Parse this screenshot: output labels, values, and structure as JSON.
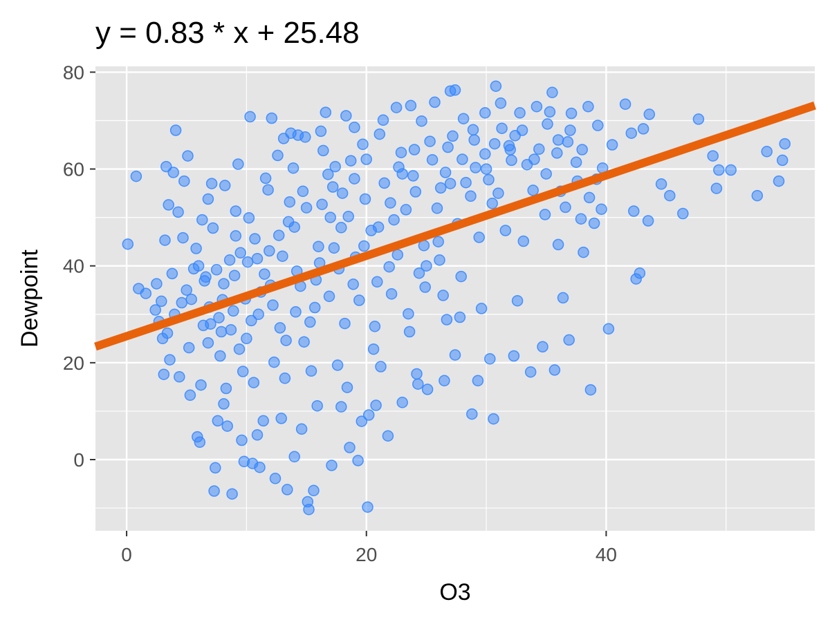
{
  "chart_data": {
    "type": "scatter",
    "title": "y = 0.83 * x + 25.48",
    "xlabel": "O3",
    "ylabel": "Dewpoint",
    "xlim": [
      -2.6,
      57.4
    ],
    "ylim": [
      -14.7,
      81.2
    ],
    "x_ticks": [
      0,
      20,
      40
    ],
    "x_tick_labels": [
      "0",
      "20",
      "40"
    ],
    "y_ticks": [
      0,
      20,
      40,
      60,
      80
    ],
    "y_tick_labels": [
      "0",
      "20",
      "40",
      "60",
      "80"
    ],
    "grid": true,
    "legend": "none",
    "colors": {
      "panel_background": "#e5e5e5",
      "grid": "#ffffff",
      "points": "#3385ff",
      "fit_line": "#e8620c"
    },
    "fit_line": {
      "slope": 0.83,
      "intercept": 25.48
    },
    "series": [
      {
        "points": [
          [
            0.1,
            44.5
          ],
          [
            0.8,
            58.5
          ],
          [
            1,
            35.3
          ],
          [
            1.6,
            34.3
          ],
          [
            2.4,
            30.9
          ],
          [
            2.5,
            36.3
          ],
          [
            2.9,
            32.7
          ],
          [
            3.1,
            17.6
          ],
          [
            3.2,
            45.3
          ],
          [
            3.3,
            60.5
          ],
          [
            3.4,
            26.1
          ],
          [
            3.5,
            52.6
          ],
          [
            3.6,
            20.6
          ],
          [
            3.9,
            59.3
          ],
          [
            4.1,
            68
          ],
          [
            4.3,
            51.1
          ],
          [
            4.7,
            45.8
          ],
          [
            4.8,
            57.5
          ],
          [
            5.1,
            62.7
          ],
          [
            5.3,
            13.3
          ],
          [
            5.6,
            39.4
          ],
          [
            5.9,
            4.7
          ],
          [
            6.1,
            3.6
          ],
          [
            6.3,
            49.5
          ],
          [
            6.6,
            37.7
          ],
          [
            6.8,
            53.8
          ],
          [
            7.1,
            57
          ],
          [
            7.3,
            -6.5
          ],
          [
            7.4,
            -1.7
          ],
          [
            7.6,
            8
          ],
          [
            7.9,
            26.4
          ],
          [
            8.1,
            11.5
          ],
          [
            8.2,
            56.6
          ],
          [
            8.4,
            6.9
          ],
          [
            8.8,
            -7.1
          ],
          [
            9.1,
            46.2
          ],
          [
            9.3,
            61
          ],
          [
            9.6,
            4
          ],
          [
            9.8,
            -0.4
          ],
          [
            10.1,
            40.8
          ],
          [
            10.3,
            70.8
          ],
          [
            10.5,
            -0.8
          ],
          [
            10.9,
            5.1
          ],
          [
            11.1,
            -1.6
          ],
          [
            11.4,
            8
          ],
          [
            11.6,
            58.1
          ],
          [
            12.1,
            70.5
          ],
          [
            12.4,
            -3.9
          ],
          [
            12.6,
            62.8
          ],
          [
            12.9,
            8.5
          ],
          [
            13.1,
            66.3
          ],
          [
            13.4,
            -6.2
          ],
          [
            13.7,
            67.4
          ],
          [
            14,
            0.6
          ],
          [
            14.3,
            67
          ],
          [
            14.6,
            6.3
          ],
          [
            14.9,
            66.6
          ],
          [
            15.1,
            -8.7
          ],
          [
            15.2,
            -10.3
          ],
          [
            15.6,
            -6.4
          ],
          [
            15.9,
            11.1
          ],
          [
            16.2,
            67.8
          ],
          [
            16.6,
            71.7
          ],
          [
            17.1,
            -1.2
          ],
          [
            17.4,
            60.5
          ],
          [
            17.9,
            10.9
          ],
          [
            18.3,
            71
          ],
          [
            18.6,
            2.5
          ],
          [
            19,
            68.6
          ],
          [
            19.3,
            -0.2
          ],
          [
            19.6,
            7.9
          ],
          [
            20.1,
            -9.8
          ],
          [
            20.2,
            9.2
          ],
          [
            20.8,
            11.2
          ],
          [
            21.4,
            70.1
          ],
          [
            21.8,
            4.9
          ],
          [
            22.5,
            72.7
          ],
          [
            23,
            11.8
          ],
          [
            23.7,
            73.1
          ],
          [
            24.3,
            15.6
          ],
          [
            25.1,
            14.5
          ],
          [
            25.7,
            73.8
          ],
          [
            26.5,
            16.3
          ],
          [
            27,
            76.1
          ],
          [
            27.4,
            76.3
          ],
          [
            28.1,
            70.4
          ],
          [
            28.8,
            9.4
          ],
          [
            29.3,
            16.3
          ],
          [
            29.9,
            71.6
          ],
          [
            30.6,
            8.4
          ],
          [
            30.8,
            77.1
          ],
          [
            31.2,
            73.6
          ],
          [
            32.3,
            21.4
          ],
          [
            32.8,
            71.6
          ],
          [
            33.7,
            18.1
          ],
          [
            34.2,
            72.9
          ],
          [
            34.7,
            23.3
          ],
          [
            35.3,
            71.8
          ],
          [
            35.5,
            75.8
          ],
          [
            35.7,
            18.5
          ],
          [
            36,
            44.4
          ],
          [
            36.4,
            33.4
          ],
          [
            36.9,
            24.7
          ],
          [
            37.1,
            71.5
          ],
          [
            37.6,
            57.5
          ],
          [
            38.1,
            42.8
          ],
          [
            38.5,
            72.9
          ],
          [
            38.7,
            14.4
          ],
          [
            39,
            48.8
          ],
          [
            39.3,
            69
          ],
          [
            39.6,
            51.7
          ],
          [
            40.2,
            27
          ],
          [
            40.5,
            65
          ],
          [
            41.6,
            73.4
          ],
          [
            42.1,
            67.4
          ],
          [
            42.3,
            51.3
          ],
          [
            42.5,
            37.3
          ],
          [
            42.8,
            38.5
          ],
          [
            43.1,
            68.3
          ],
          [
            43.5,
            49.3
          ],
          [
            43.6,
            71.3
          ],
          [
            44.6,
            56.9
          ],
          [
            45.3,
            54.5
          ],
          [
            46.4,
            50.8
          ],
          [
            47.7,
            70.3
          ],
          [
            48.9,
            62.7
          ],
          [
            49.2,
            56
          ],
          [
            49.4,
            59.8
          ],
          [
            50.4,
            59.8
          ],
          [
            52.6,
            54.5
          ],
          [
            53.4,
            63.6
          ],
          [
            54.4,
            57.5
          ],
          [
            54.7,
            61.8
          ],
          [
            54.9,
            65.2
          ],
          [
            3,
            25
          ],
          [
            4,
            30
          ],
          [
            5,
            35
          ],
          [
            6,
            40
          ],
          [
            7,
            28
          ],
          [
            8,
            33
          ],
          [
            9,
            38
          ],
          [
            10,
            25
          ],
          [
            11,
            30
          ],
          [
            12,
            36
          ],
          [
            13,
            42
          ],
          [
            14,
            48
          ],
          [
            15,
            52
          ],
          [
            16,
            44
          ],
          [
            17,
            50
          ],
          [
            18,
            55
          ],
          [
            19,
            58
          ],
          [
            20,
            62
          ],
          [
            21,
            48
          ],
          [
            22,
            53
          ],
          [
            23,
            59
          ],
          [
            24,
            64
          ],
          [
            25,
            40
          ],
          [
            26,
            45
          ],
          [
            27,
            57
          ],
          [
            28,
            62
          ],
          [
            29,
            66
          ],
          [
            30,
            60
          ],
          [
            31,
            55
          ],
          [
            32,
            64
          ],
          [
            33,
            68
          ],
          [
            34,
            62
          ],
          [
            35,
            59
          ],
          [
            36,
            66
          ],
          [
            37,
            68
          ],
          [
            38,
            64
          ],
          [
            6.8,
            24.1
          ],
          [
            7.7,
            29.3
          ],
          [
            9.4,
            22.8
          ],
          [
            11.2,
            34.6
          ],
          [
            12.8,
            27.2
          ],
          [
            14.2,
            38.9
          ],
          [
            15.7,
            31.4
          ],
          [
            17.3,
            43.7
          ],
          [
            18.9,
            36.2
          ],
          [
            20.4,
            47.3
          ],
          [
            21.9,
            39.8
          ],
          [
            23.3,
            51.6
          ],
          [
            24.8,
            44.2
          ],
          [
            26.2,
            56.1
          ],
          [
            27.6,
            48.7
          ],
          [
            29.1,
            60.3
          ],
          [
            30.5,
            52.9
          ],
          [
            31.9,
            64.8
          ],
          [
            5.4,
            33.1
          ],
          [
            8.6,
            41.2
          ],
          [
            10.7,
            45.6
          ],
          [
            13.6,
            53.2
          ],
          [
            16.8,
            58.9
          ],
          [
            19.7,
            65.1
          ],
          [
            22.7,
            60.4
          ],
          [
            25.3,
            65.7
          ],
          [
            28.3,
            57.2
          ],
          [
            31.3,
            68.4
          ],
          [
            33.4,
            60.9
          ],
          [
            35.9,
            63.3
          ],
          [
            9.7,
            18.2
          ],
          [
            12.3,
            20.1
          ],
          [
            14.8,
            24.3
          ],
          [
            17.6,
            19.5
          ],
          [
            20.6,
            22.8
          ],
          [
            23.6,
            26.4
          ],
          [
            26.7,
            28.9
          ],
          [
            29.6,
            31.2
          ],
          [
            32.6,
            32.8
          ],
          [
            4.4,
            17.1
          ],
          [
            6.2,
            15.4
          ],
          [
            8.3,
            14.7
          ],
          [
            10.6,
            15.9
          ],
          [
            13.2,
            16.8
          ],
          [
            15.4,
            18.3
          ],
          [
            18.4,
            14.9
          ],
          [
            21.2,
            19.2
          ],
          [
            24.2,
            17.7
          ],
          [
            27.4,
            21.6
          ],
          [
            30.3,
            20.8
          ],
          [
            3.8,
            38.4
          ],
          [
            5.8,
            43.6
          ],
          [
            7.2,
            47.8
          ],
          [
            9.1,
            51.3
          ],
          [
            11.8,
            55.7
          ],
          [
            13.9,
            60.2
          ],
          [
            16.4,
            63.8
          ],
          [
            18.7,
            61.7
          ],
          [
            21.1,
            67.2
          ],
          [
            24.6,
            69.9
          ],
          [
            26.8,
            64.5
          ],
          [
            29.9,
            63.1
          ],
          [
            32.1,
            61.8
          ],
          [
            2.7,
            28.5
          ],
          [
            4.6,
            32.4
          ],
          [
            6.5,
            36.9
          ],
          [
            8.9,
            30.7
          ],
          [
            10.9,
            41.5
          ],
          [
            12.7,
            46.3
          ],
          [
            14.5,
            35.8
          ],
          [
            16.1,
            40.6
          ],
          [
            17.9,
            47.9
          ],
          [
            19.8,
            44.1
          ],
          [
            22.3,
            49.5
          ],
          [
            24.1,
            55.3
          ],
          [
            25.9,
            51.9
          ],
          [
            28.7,
            54.4
          ],
          [
            30.2,
            57.8
          ],
          [
            33.9,
            55.6
          ],
          [
            36.6,
            52.1
          ],
          [
            37.9,
            49.7
          ],
          [
            39.7,
            60.2
          ],
          [
            15.3,
            28.4
          ],
          [
            16.9,
            33.7
          ],
          [
            18.2,
            28.1
          ],
          [
            19.4,
            32.9
          ],
          [
            20.7,
            27.5
          ],
          [
            22.1,
            34.2
          ],
          [
            23.5,
            30.1
          ],
          [
            24.9,
            35.6
          ],
          [
            26.4,
            33.9
          ],
          [
            27.8,
            29.4
          ],
          [
            6.9,
            31.5
          ],
          [
            7.5,
            39.2
          ],
          [
            8.7,
            26.8
          ],
          [
            9.9,
            33.2
          ],
          [
            10.4,
            28.7
          ],
          [
            11.5,
            38.3
          ],
          [
            12.2,
            31.9
          ],
          [
            13.3,
            24.6
          ],
          [
            14.1,
            30.5
          ],
          [
            15.8,
            37.1
          ],
          [
            17.7,
            39.4
          ],
          [
            19.1,
            41.8
          ],
          [
            20.9,
            36.7
          ],
          [
            22.6,
            42.3
          ],
          [
            24.4,
            38.5
          ],
          [
            26.1,
            41.2
          ],
          [
            27.9,
            37.8
          ],
          [
            29.4,
            45.9
          ],
          [
            31.6,
            47.3
          ],
          [
            33.1,
            45.1
          ],
          [
            34.9,
            50.6
          ],
          [
            36.2,
            55.4
          ],
          [
            38.6,
            54.1
          ],
          [
            39.2,
            57.9
          ],
          [
            5.2,
            23.1
          ],
          [
            6.4,
            27.7
          ],
          [
            7.8,
            21.4
          ],
          [
            8.1,
            36.3
          ],
          [
            9.5,
            42.7
          ],
          [
            10.2,
            49.9
          ],
          [
            11.9,
            43.1
          ],
          [
            13.5,
            49.1
          ],
          [
            14.7,
            55.4
          ],
          [
            16.3,
            52.7
          ],
          [
            17.2,
            56.3
          ],
          [
            18.5,
            50.2
          ],
          [
            19.9,
            53.8
          ],
          [
            21.5,
            57.1
          ],
          [
            22.9,
            63.4
          ],
          [
            23.9,
            58.6
          ],
          [
            25.5,
            61.9
          ],
          [
            26.6,
            59.3
          ],
          [
            27.2,
            66.8
          ],
          [
            28.9,
            68.1
          ],
          [
            30.7,
            65.2
          ],
          [
            32.4,
            66.9
          ],
          [
            34.4,
            64.1
          ],
          [
            35.1,
            69.3
          ],
          [
            36.8,
            65.6
          ],
          [
            37.5,
            61.4
          ]
        ]
      }
    ]
  }
}
